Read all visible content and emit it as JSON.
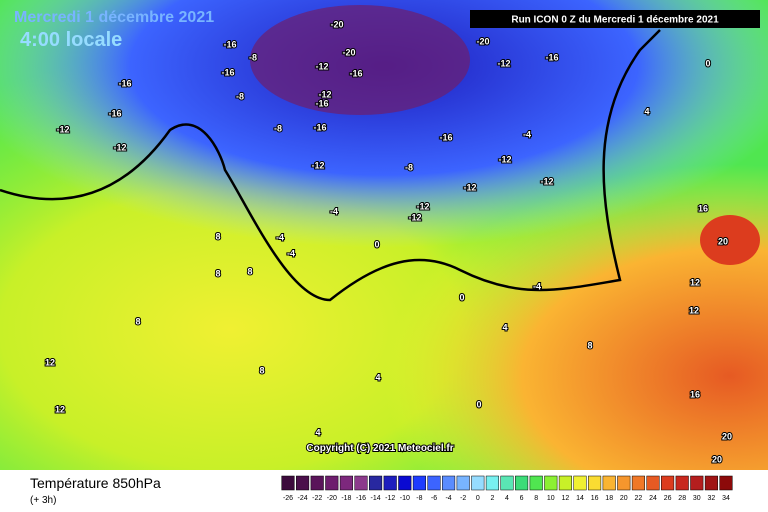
{
  "header": {
    "date": "Mercredi 1 décembre 2021",
    "time": "4:00 locale",
    "run": "Run ICON 0 Z du Mercredi 1 décembre 2021"
  },
  "footer": {
    "title": "Température 850hPa",
    "subtitle": "(+ 3h)",
    "copyright": "Copyright (C) 2021 Meteociel.fr"
  },
  "colorbar": {
    "ticks": [
      -26,
      -24,
      -22,
      -20,
      -18,
      -16,
      -14,
      -12,
      -10,
      -8,
      -6,
      -4,
      -2,
      0,
      2,
      4,
      6,
      8,
      10,
      12,
      14,
      16,
      18,
      20,
      22,
      24,
      26,
      28,
      30,
      32,
      34
    ],
    "colors": [
      "#3c0a3c",
      "#4b0f4b",
      "#5a145a",
      "#6e1e6e",
      "#7d287d",
      "#8c3a8c",
      "#2828a0",
      "#1e1ebe",
      "#0a0ad2",
      "#1e3cff",
      "#3c64ff",
      "#5a8cff",
      "#78b4ff",
      "#96dcff",
      "#78f0f0",
      "#5ae6b4",
      "#3cdc78",
      "#50e650",
      "#8cf032",
      "#c8f028",
      "#f0f032",
      "#fadc32",
      "#fab432",
      "#f5962d",
      "#f07828",
      "#e65a23",
      "#dc3c1e",
      "#c8281e",
      "#b41e1e",
      "#a01414",
      "#8c0a0a"
    ]
  },
  "contour_labels": [
    -16,
    -8,
    -16,
    -20,
    -20,
    -16,
    -12,
    -12,
    -16,
    -16,
    -20,
    -12,
    -16,
    -16,
    -16,
    -12,
    -12,
    -8,
    -8,
    -12,
    -8,
    -16,
    -12,
    -12,
    -12,
    -4,
    -4,
    -12,
    -12,
    -4,
    -4,
    0,
    0,
    4,
    8,
    8,
    8,
    8,
    12,
    12,
    4,
    20,
    16,
    12,
    12,
    20,
    20,
    16,
    8,
    0,
    4,
    -4,
    0,
    4,
    8
  ]
}
